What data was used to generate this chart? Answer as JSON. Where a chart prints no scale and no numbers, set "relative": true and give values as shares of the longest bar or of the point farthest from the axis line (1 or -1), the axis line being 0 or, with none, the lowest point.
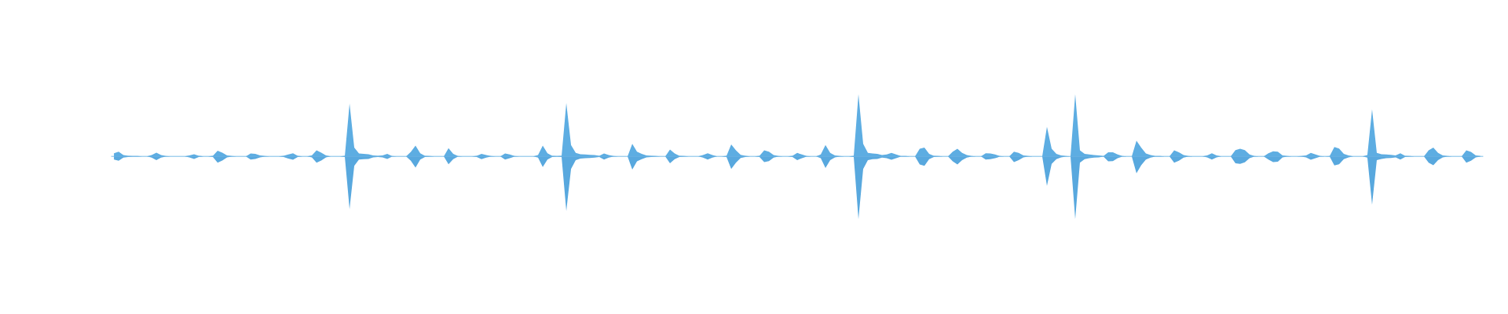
{
  "chart_data": {
    "type": "area",
    "relative": true,
    "categories": [
      null,
      null,
      null,
      null,
      null,
      null,
      null,
      null,
      null,
      null,
      null,
      null,
      null,
      null,
      null,
      null,
      null,
      null,
      null,
      null,
      null,
      null,
      null,
      null,
      null,
      null,
      null,
      null,
      null,
      null,
      null,
      null,
      null,
      null,
      null,
      null,
      null,
      null,
      null,
      null,
      null,
      null,
      null,
      null,
      null,
      null,
      null,
      null,
      null,
      null,
      null,
      null,
      null,
      null,
      null,
      null,
      null,
      null,
      null,
      null,
      null,
      null,
      null,
      null,
      null,
      null,
      null,
      null,
      null,
      null,
      null,
      null,
      null,
      null,
      null,
      null,
      null,
      null,
      null,
      null,
      null,
      null,
      null,
      null,
      null,
      null,
      null,
      null,
      null,
      null,
      null,
      null,
      null,
      null,
      null,
      null,
      null,
      null,
      null,
      null,
      null,
      null,
      null,
      null,
      null,
      null,
      null,
      null,
      null,
      null,
      null,
      null,
      null,
      null,
      null,
      null,
      null,
      null,
      null,
      null,
      null,
      null,
      null,
      null,
      null,
      null,
      null,
      null,
      null,
      null,
      null,
      null,
      null,
      null,
      null,
      null,
      null,
      null,
      null,
      null,
      null,
      null,
      null,
      null,
      null,
      null,
      null,
      null,
      null,
      null,
      null,
      null,
      null,
      null,
      null,
      null,
      null,
      null,
      null,
      null,
      null,
      null,
      null,
      null,
      null,
      null,
      null,
      null,
      null,
      null,
      null,
      null,
      null,
      null,
      null,
      null,
      null,
      null,
      null,
      null,
      null,
      null,
      null,
      null,
      null,
      null,
      null,
      null,
      null,
      null,
      null,
      null,
      null,
      null,
      null,
      null,
      null,
      null,
      null,
      null,
      null,
      null,
      null,
      null,
      null,
      null,
      null,
      null,
      null,
      null,
      null,
      null,
      null,
      null,
      null,
      null,
      null,
      null,
      null,
      null,
      null,
      null,
      null,
      null,
      null,
      null,
      null,
      null,
      null,
      null,
      null,
      null,
      null,
      null,
      null,
      null,
      null,
      null,
      null,
      null,
      null,
      null,
      null,
      null,
      null,
      null,
      null,
      null,
      null,
      null,
      null,
      null,
      null,
      null,
      null,
      null,
      null,
      null,
      null,
      null,
      null,
      null,
      null,
      null,
      null,
      null,
      null,
      null,
      null,
      null,
      null,
      null,
      null,
      null,
      null,
      null,
      null,
      null,
      null,
      null,
      null,
      null,
      null,
      null,
      null,
      null,
      null,
      null,
      null,
      null,
      null
    ],
    "series": [
      {
        "color": "#5dade2",
        "values": [
          0.05,
          0.075,
          0.02,
          0.01,
          0.005,
          0.005,
          0,
          0,
          0.02,
          0.06,
          0.02,
          0.005,
          0,
          0,
          0,
          0,
          0.015,
          0.035,
          0.01,
          0,
          0,
          0.01,
          0.09,
          0.06,
          0.015,
          0.005,
          0,
          0,
          0,
          0.045,
          0.04,
          0.015,
          0.005,
          0,
          0,
          0,
          0.01,
          0.03,
          0.05,
          0.01,
          0,
          0,
          0.015,
          0.095,
          0.06,
          0.015,
          0,
          0,
          0,
          0.01,
          0.84,
          0.14,
          0.045,
          0.04,
          0.035,
          0.015,
          0.01,
          0.015,
          0.04,
          0.005,
          0,
          0,
          0,
          0.07,
          0.17,
          0.05,
          0.01,
          0.005,
          0,
          0,
          0,
          0.13,
          0.04,
          0.005,
          0,
          0,
          0,
          0.01,
          0.04,
          0.02,
          0.005,
          0,
          0,
          0.045,
          0.03,
          0.005,
          0,
          0,
          0,
          0,
          0.02,
          0.17,
          0.05,
          0.01,
          0.005,
          0.01,
          0.85,
          0.18,
          0.055,
          0.035,
          0.03,
          0.025,
          0.02,
          0.01,
          0.045,
          0.02,
          0.005,
          0,
          0,
          0,
          0.2,
          0.075,
          0.04,
          0.015,
          0.01,
          0.005,
          0,
          0,
          0.11,
          0.045,
          0.01,
          0.005,
          0,
          0,
          0,
          0.02,
          0.05,
          0.02,
          0,
          0,
          0.01,
          0.19,
          0.095,
          0.025,
          0.01,
          0,
          0,
          0.01,
          0.095,
          0.075,
          0.02,
          0.005,
          0,
          0,
          0.01,
          0.055,
          0.03,
          0.005,
          0,
          0,
          0.03,
          0.18,
          0.055,
          0.015,
          0.005,
          0,
          0,
          0.01,
          0.99,
          0.2,
          0.055,
          0.045,
          0.04,
          0.02,
          0.03,
          0.055,
          0.03,
          0.005,
          0.005,
          0,
          0,
          0.12,
          0.14,
          0.04,
          0.01,
          0.005,
          0,
          0,
          0.075,
          0.12,
          0.055,
          0.02,
          0.005,
          0,
          0,
          0.05,
          0.045,
          0.03,
          0.005,
          0,
          0,
          0.075,
          0.055,
          0.015,
          0.005,
          0,
          0,
          0,
          0.47,
          0.12,
          0.04,
          0.015,
          0.005,
          0,
          0.99,
          0.095,
          0.04,
          0.03,
          0.02,
          0.015,
          0.005,
          0.065,
          0.065,
          0.03,
          0.005,
          0,
          0,
          0.25,
          0.14,
          0.045,
          0.02,
          0.005,
          0.005,
          0,
          0,
          0.095,
          0.065,
          0.02,
          0.005,
          0,
          0,
          0,
          0.015,
          0.05,
          0.015,
          0,
          0,
          0,
          0.1,
          0.12,
          0.1,
          0.03,
          0.005,
          0,
          0,
          0.05,
          0.08,
          0.075,
          0.015,
          0.005,
          0,
          0,
          0.005,
          0.015,
          0.055,
          0.03,
          0.005,
          0,
          0.005,
          0.15,
          0.125,
          0.04,
          0.015,
          0,
          0,
          0,
          0.02,
          0.75,
          0.055,
          0.035,
          0.03,
          0.025,
          0.015,
          0.05,
          0.01,
          0.005,
          0,
          0,
          0,
          0.095,
          0.14,
          0.055,
          0.015,
          0.005,
          0,
          0,
          0,
          0.095,
          0.07,
          0.015,
          0.005
        ]
      },
      {
        "color": "#58a8de",
        "values": [
          -0.05,
          -0.07,
          -0.02,
          -0.01,
          -0.005,
          -0.005,
          0,
          0,
          -0.02,
          -0.06,
          -0.02,
          -0.005,
          0,
          0,
          0,
          0,
          -0.015,
          -0.04,
          -0.01,
          0,
          0,
          -0.01,
          -0.1,
          -0.065,
          -0.015,
          -0.005,
          0,
          0,
          0,
          -0.05,
          -0.04,
          -0.015,
          -0.005,
          0,
          0,
          0,
          -0.01,
          -0.035,
          -0.055,
          -0.01,
          0,
          0,
          -0.015,
          -0.1,
          -0.065,
          -0.015,
          0,
          0,
          0,
          -0.01,
          -0.84,
          -0.15,
          -0.05,
          -0.045,
          -0.04,
          -0.015,
          -0.01,
          -0.015,
          -0.04,
          -0.005,
          0,
          0,
          0,
          -0.07,
          -0.18,
          -0.05,
          -0.01,
          -0.005,
          0,
          0,
          0,
          -0.125,
          -0.045,
          -0.005,
          0,
          0,
          0,
          -0.01,
          -0.045,
          -0.02,
          -0.005,
          0,
          0,
          -0.05,
          -0.03,
          -0.005,
          0,
          0,
          0,
          0,
          -0.02,
          -0.17,
          -0.05,
          -0.01,
          -0.005,
          -0.01,
          -0.87,
          -0.2,
          -0.06,
          -0.035,
          -0.03,
          -0.025,
          -0.02,
          -0.01,
          -0.05,
          -0.02,
          -0.005,
          0,
          0,
          0,
          -0.21,
          -0.08,
          -0.045,
          -0.015,
          -0.01,
          -0.005,
          0,
          0,
          -0.11,
          -0.045,
          -0.01,
          -0.005,
          0,
          0,
          0,
          -0.02,
          -0.05,
          -0.02,
          0,
          0,
          -0.01,
          -0.2,
          -0.1,
          -0.025,
          -0.01,
          0,
          0,
          -0.01,
          -0.09,
          -0.075,
          -0.02,
          -0.005,
          0,
          0,
          -0.01,
          -0.06,
          -0.03,
          -0.005,
          0,
          0,
          -0.03,
          -0.185,
          -0.06,
          -0.015,
          -0.005,
          0,
          0,
          -0.01,
          -1.0,
          -0.2,
          -0.06,
          -0.045,
          -0.04,
          -0.02,
          -0.03,
          -0.055,
          -0.03,
          -0.005,
          -0.005,
          0,
          0,
          -0.13,
          -0.15,
          -0.045,
          -0.01,
          -0.005,
          0,
          0,
          -0.08,
          -0.13,
          -0.06,
          -0.02,
          -0.005,
          0,
          0,
          -0.05,
          -0.045,
          -0.03,
          -0.005,
          0,
          0,
          -0.09,
          -0.06,
          -0.015,
          -0.005,
          0,
          0,
          0,
          -0.47,
          -0.12,
          -0.045,
          -0.015,
          -0.005,
          0,
          -1.0,
          -0.1,
          -0.045,
          -0.03,
          -0.02,
          -0.015,
          -0.005,
          -0.08,
          -0.075,
          -0.03,
          -0.005,
          0,
          0,
          -0.27,
          -0.14,
          -0.05,
          -0.02,
          -0.005,
          -0.005,
          0,
          0,
          -0.1,
          -0.07,
          -0.02,
          -0.005,
          0,
          0,
          0,
          -0.015,
          -0.05,
          -0.015,
          0,
          0,
          0,
          -0.11,
          -0.12,
          -0.095,
          -0.03,
          -0.005,
          0,
          0,
          -0.05,
          -0.09,
          -0.085,
          -0.015,
          -0.005,
          0,
          0,
          -0.005,
          -0.015,
          -0.055,
          -0.03,
          -0.005,
          0,
          -0.005,
          -0.145,
          -0.125,
          -0.045,
          -0.015,
          0,
          0,
          0,
          -0.02,
          -0.77,
          -0.06,
          -0.04,
          -0.03,
          -0.025,
          -0.015,
          -0.05,
          -0.01,
          -0.005,
          0,
          0,
          0,
          -0.1,
          -0.14,
          -0.06,
          -0.015,
          -0.005,
          0,
          0,
          0,
          -0.1,
          -0.07,
          -0.015,
          -0.005
        ]
      }
    ]
  }
}
